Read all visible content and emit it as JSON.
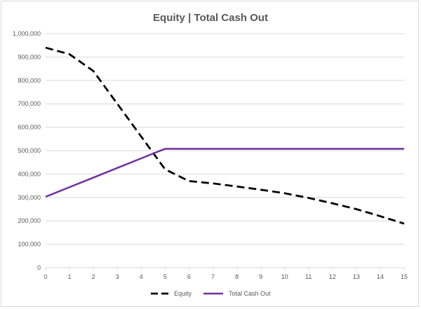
{
  "chart_data": {
    "type": "line",
    "title": "Equity | Total Cash Out",
    "xlabel": "",
    "ylabel": "",
    "x": [
      0,
      1,
      2,
      3,
      4,
      5,
      6,
      7,
      8,
      9,
      10,
      11,
      12,
      13,
      14,
      15
    ],
    "xlim": [
      0,
      15
    ],
    "ylim": [
      0,
      1000000
    ],
    "y_ticks": [
      "0",
      "100,000",
      "200,000",
      "300,000",
      "400,000",
      "500,000",
      "600,000",
      "700,000",
      "800,000",
      "900,000",
      "1,000,000"
    ],
    "x_ticks": [
      "0",
      "1",
      "2",
      "3",
      "4",
      "5",
      "6",
      "7",
      "8",
      "9",
      "10",
      "11",
      "12",
      "13",
      "14",
      "15"
    ],
    "grid": true,
    "legend_position": "bottom",
    "series": [
      {
        "name": "Equity",
        "color": "#000000",
        "style": "dashed",
        "values": [
          940000,
          912000,
          840000,
          700000,
          560000,
          420000,
          370000,
          360000,
          347000,
          333000,
          318000,
          298000,
          275000,
          250000,
          220000,
          188000
        ]
      },
      {
        "name": "Total Cash Out",
        "color": "#7030a0",
        "style": "solid",
        "values": [
          303000,
          344000,
          385000,
          426000,
          467000,
          508000,
          508000,
          508000,
          508000,
          508000,
          508000,
          508000,
          508000,
          508000,
          508000,
          508000
        ]
      }
    ]
  }
}
